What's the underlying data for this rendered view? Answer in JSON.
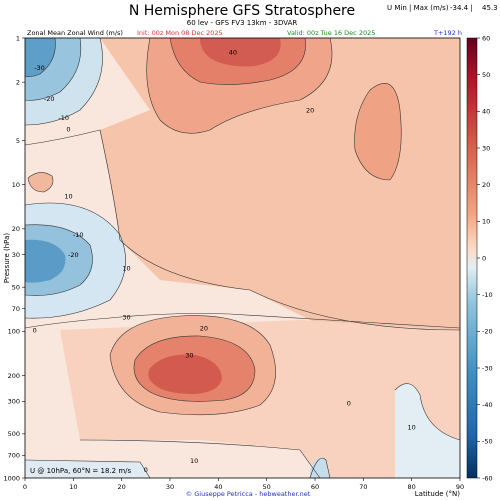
{
  "header": {
    "title": "N Hemisphere GFS Stratosphere",
    "subtitle": "60 lev - GFS FV3 13km - 3DVAR",
    "minmax_label": "U Min | Max (m/s)",
    "min_value": "-34.4 |",
    "max_value": "45.3"
  },
  "info": {
    "left": "Zonal Mean Zonal Wind (m/s)",
    "init": "Init: 00z Mon 08 Dec 2025",
    "valid": "Valid: 00z Tue 16 Dec 2025",
    "lead": "T+192 h"
  },
  "annotation": "U @ 10hPa, 60°N = 18.2 m/s",
  "credit": "© Giuseppe Petricca - hebweather.net",
  "colors": {
    "init": "#e03030",
    "valid": "#1a8a1a",
    "lead": "#2030d0",
    "credit": "#2030c0"
  },
  "chart_data": {
    "type": "heatmap",
    "title": "N Hemisphere GFS Stratosphere",
    "xlabel": "Latitude (°N)",
    "ylabel": "Pressure (hPa)",
    "xlim": [
      0,
      90
    ],
    "ylim": [
      1000,
      1
    ],
    "yscale": "log",
    "x_ticks": [
      0,
      10,
      20,
      30,
      40,
      50,
      60,
      70,
      80,
      90
    ],
    "y_ticks": [
      1,
      2,
      5,
      10,
      20,
      30,
      50,
      70,
      100,
      200,
      300,
      500,
      700,
      1000
    ],
    "colorbar": {
      "ticks": [
        60,
        50,
        40,
        30,
        20,
        10,
        0,
        -10,
        -20,
        -30,
        -40,
        -50,
        -60
      ],
      "range": [
        -60,
        60
      ],
      "colormap": "RdBu_r"
    },
    "contour_labels": [
      {
        "text": "-30",
        "lat": 3,
        "p": 1.6
      },
      {
        "text": "-20",
        "lat": 5,
        "p": 2.6
      },
      {
        "text": "-10",
        "lat": 8,
        "p": 3.5
      },
      {
        "text": "0",
        "lat": 9,
        "p": 4.2
      },
      {
        "text": "10",
        "lat": 9,
        "p": 12
      },
      {
        "text": "40",
        "lat": 43,
        "p": 1.25
      },
      {
        "text": "20",
        "lat": 59,
        "p": 3.1
      },
      {
        "text": "-10",
        "lat": 11,
        "p": 22
      },
      {
        "text": "-20",
        "lat": 10,
        "p": 30
      },
      {
        "text": "10",
        "lat": 21,
        "p": 37
      },
      {
        "text": "0",
        "lat": 2,
        "p": 98
      },
      {
        "text": "30",
        "lat": 21,
        "p": 80
      },
      {
        "text": "20",
        "lat": 37,
        "p": 95
      },
      {
        "text": "30",
        "lat": 34,
        "p": 145
      },
      {
        "text": "0",
        "lat": 67,
        "p": 310
      },
      {
        "text": "10",
        "lat": 80,
        "p": 450
      },
      {
        "text": "0",
        "lat": 25,
        "p": 880
      },
      {
        "text": "10",
        "lat": 35,
        "p": 760
      }
    ],
    "wind_centers": [
      {
        "lat": 2,
        "p": 1,
        "u": -34
      },
      {
        "lat": 0,
        "p": 30,
        "u": -28
      },
      {
        "lat": 38,
        "p": 1,
        "u": 45
      },
      {
        "lat": 34,
        "p": 190,
        "u": 38
      },
      {
        "lat": 72,
        "p": 5,
        "u": 28
      }
    ]
  }
}
